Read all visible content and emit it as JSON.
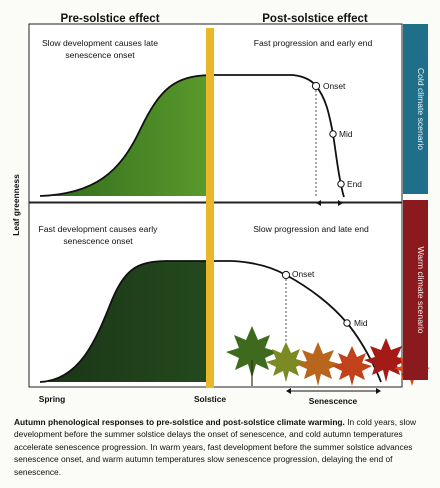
{
  "headers": {
    "pre": "Pre-solstice effect",
    "post": "Post-solstice effect"
  },
  "top_panel": {
    "pre_note": [
      "Slow development causes late",
      "senescence onset"
    ],
    "post_note": "Fast progression and early end",
    "scenario": "Cold climate scenario",
    "markers": {
      "onset": "Onset",
      "mid": "Mid",
      "end": "End"
    }
  },
  "bottom_panel": {
    "pre_note": [
      "Fast development causes early",
      "senescence onset"
    ],
    "post_note": "Slow progression and late end",
    "scenario": "Warm climate scenario",
    "markers": {
      "onset": "Onset",
      "mid": "Mid"
    }
  },
  "axes": {
    "y_label": "Leaf greenness",
    "x_spring": "Spring",
    "x_solstice": "Solstice",
    "x_senescence": "Senescence"
  },
  "caption": {
    "title": "Autumn phenological responses to pre-solstice and post-solstice climate warming.",
    "body": " In cold years, slow development before the summer solstice delays the onset of senescence, and cold autumn temperatures accelerate senescence progression. In warm years, fast development before the summer solstice advances senescence onset, and warm autumn temperatures slow senescence progression, delaying the end of senescence."
  },
  "colors": {
    "cold_bar": "#1f6f8b",
    "warm_bar": "#8b1a1e",
    "solstice_bar": "#e9b828",
    "top_fill": "#4f8a26",
    "bottom_fill": "#1f3f1a"
  }
}
